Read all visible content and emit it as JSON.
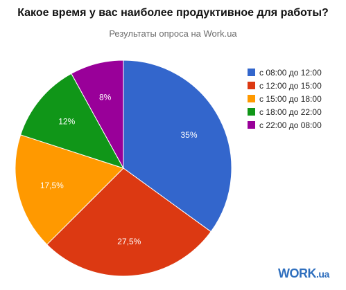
{
  "title": "Какое время у вас наиболее продуктивное для работы?",
  "subtitle": "Результаты опроса на Work.ua",
  "logo": {
    "main": "WORK",
    "suffix": ".ua"
  },
  "chart_data": {
    "type": "pie",
    "categories": [
      "с 08:00 до 12:00",
      "с 12:00 до 15:00",
      "с 15:00 до 18:00",
      "с 18:00 до 22:00",
      "с 22:00 до 08:00"
    ],
    "values": [
      35,
      27.5,
      17.5,
      12,
      8
    ],
    "labels": [
      "35%",
      "27,5%",
      "17,5%",
      "12%",
      "8%"
    ],
    "colors": [
      "#3366cc",
      "#dc3912",
      "#ff9900",
      "#109618",
      "#990099"
    ],
    "start_angle_deg": 0,
    "direction": "clockwise",
    "legend_position": "right"
  }
}
